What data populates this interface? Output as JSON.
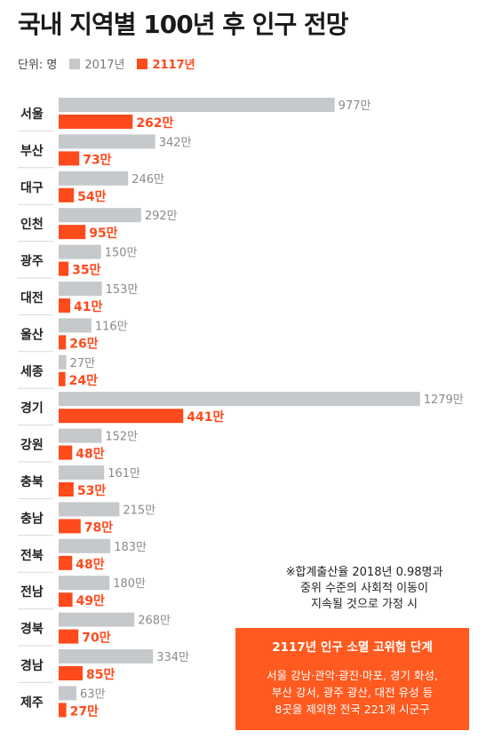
{
  "title": "국내 지역별 100년 후 인구 전망",
  "legend": {
    "unit": "단위: 명",
    "series_2017": "2017년",
    "series_2117": "2117년",
    "color_2017": "#c6c9cc",
    "color_2117": "#ff4a1c"
  },
  "chart_data": {
    "type": "bar",
    "orientation": "horizontal",
    "unit": "만",
    "categories": [
      "서울",
      "부산",
      "대구",
      "인천",
      "광주",
      "대전",
      "울산",
      "세종",
      "경기",
      "강원",
      "충북",
      "충남",
      "전북",
      "전남",
      "경북",
      "경남",
      "제주"
    ],
    "series": [
      {
        "name": "2017년",
        "values": [
          977,
          342,
          246,
          292,
          150,
          153,
          116,
          27,
          1279,
          152,
          161,
          215,
          183,
          180,
          268,
          334,
          63
        ]
      },
      {
        "name": "2117년",
        "values": [
          262,
          73,
          54,
          95,
          35,
          41,
          26,
          24,
          441,
          48,
          53,
          78,
          48,
          49,
          70,
          85,
          27
        ]
      }
    ]
  },
  "note": {
    "line1": "※합계출산율 2018년 0.98명과",
    "line2": "중위 수준의 사회적 이동이",
    "line3": "지속될 것으로 가정 시"
  },
  "box": {
    "title": "2117년 인구 소멸 고위험 단계",
    "line1": "서울 강남·관악·광진·마포, 경기 화성,",
    "line2": "부산 강서, 광주 광산, 대전 유성 등",
    "line3": "8곳을 제외한 전국 221개 시군구"
  }
}
